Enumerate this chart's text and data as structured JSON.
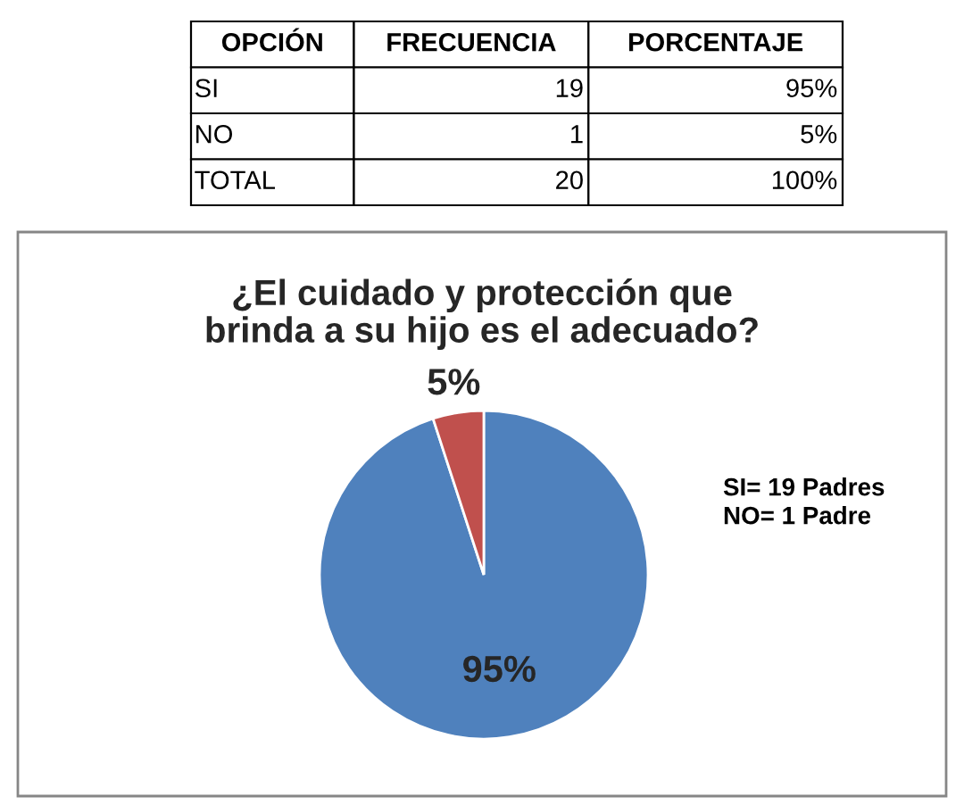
{
  "chart_data": {
    "type": "pie",
    "title": "¿El cuidado y protección que\nbrinda a su hijo es el adecuado?",
    "categories": [
      null,
      null
    ],
    "values": [
      95,
      5
    ],
    "colors": [
      "#4f81bd",
      "#c0504d"
    ],
    "value_labels": [
      "95%",
      "5%"
    ],
    "annotations": [
      "OPCIÓN",
      "FRECUENCIA",
      "PORCENTAJE",
      "SI",
      "19",
      "95%",
      "NO",
      "1",
      "5%",
      "TOTAL",
      "20",
      "100%",
      "SI= 19 Padres\nNO= 1 Padre"
    ],
    "legend": false
  }
}
